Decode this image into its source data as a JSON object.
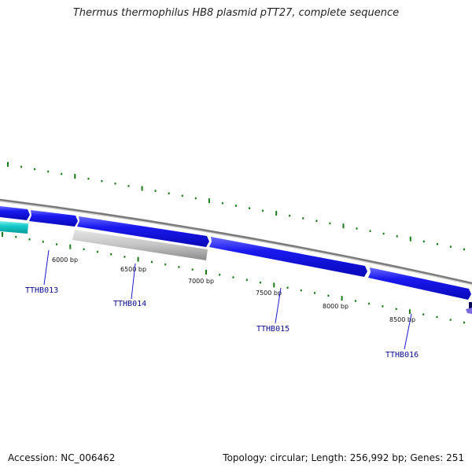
{
  "title": "Thermus thermophilus HB8 plasmid pTT27, complete sequence",
  "footer": {
    "accession": "Accession: NC_006462",
    "summary": "Topology: circular; Length: 256,992 bp; Genes: 251"
  },
  "colors": {
    "backbone": "#888888",
    "tick": "#1a7a1a",
    "gene_forward": "#1010e6",
    "gene_cyan": "#10c8c8",
    "gene_gray": "#bdbdbd",
    "gene_purple": "#6a5acd",
    "label": "#0a0a8c"
  },
  "scale_labels": [
    {
      "bp": 6000,
      "text": "6000 bp"
    },
    {
      "bp": 6500,
      "text": "6500 bp"
    },
    {
      "bp": 7000,
      "text": "7000 bp"
    },
    {
      "bp": 7500,
      "text": "7500 bp"
    },
    {
      "bp": 8000,
      "text": "8000 bp"
    },
    {
      "bp": 8500,
      "text": "8500 bp"
    }
  ],
  "gene_labels": [
    "TTHB013",
    "TTHB014",
    "TTHB015",
    "TTHB016"
  ]
}
